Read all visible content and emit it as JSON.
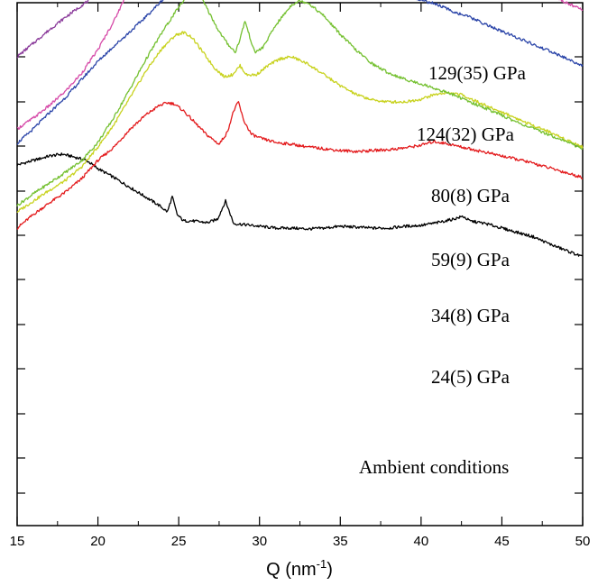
{
  "chart_data": {
    "type": "line",
    "title": "",
    "xlabel": "Q (nm⁻¹)",
    "xlabel_base": "Q (nm",
    "xlabel_exp": "-1",
    "xlabel_close": ")",
    "ylabel": "",
    "xlim": [
      15,
      50
    ],
    "xticks": [
      "15",
      "20",
      "25",
      "30",
      "35",
      "40",
      "45",
      "50"
    ],
    "yticks_labeled": false,
    "y_units": "arbitrary intensity (stacked, offset)",
    "series": [
      {
        "name": "Ambient conditions",
        "color": "#000000",
        "x": [
          15,
          16,
          17,
          17.8,
          18.5,
          19.3,
          20,
          21,
          22,
          23,
          23.8,
          24.3,
          24.6,
          24.9,
          25.3,
          25.8,
          26.3,
          26.8,
          27.4,
          27.7,
          27.9,
          28.1,
          28.4,
          29,
          30,
          31,
          32,
          33,
          34,
          35,
          36,
          37,
          38,
          39,
          40,
          41,
          42,
          42.6,
          43,
          44,
          45,
          46,
          47,
          48,
          49,
          50
        ],
        "y": [
          400,
          405,
          410,
          412,
          409,
          405,
          396,
          386,
          375,
          364,
          355,
          348,
          365,
          345,
          338,
          338,
          337,
          336,
          340,
          352,
          360,
          350,
          335,
          334,
          332,
          330,
          330,
          329,
          330,
          332,
          331,
          330,
          330,
          332,
          333,
          336,
          340,
          343,
          338,
          335,
          330,
          325,
          320,
          312,
          305,
          298
        ]
      },
      {
        "name": "24(5) GPa",
        "color": "#e31a1c",
        "x": [
          15,
          16,
          17,
          18,
          19,
          20,
          21,
          22,
          23,
          23.8,
          24.3,
          24.7,
          25.3,
          26,
          26.7,
          27.5,
          28,
          28.4,
          28.7,
          29,
          29.5,
          30,
          31,
          32,
          33,
          34,
          35,
          36,
          37,
          38,
          39,
          40,
          40.8,
          41.5,
          42.5,
          43.5,
          44.5,
          45.5,
          46.5,
          47.5,
          48.5,
          50
        ],
        "y": [
          330,
          345,
          358,
          370,
          385,
          405,
          420,
          440,
          456,
          466,
          469,
          468,
          460,
          447,
          434,
          423,
          436,
          460,
          470,
          450,
          434,
          430,
          425,
          423,
          420,
          418,
          416,
          415,
          416,
          417,
          419,
          422,
          426,
          424,
          420,
          416,
          412,
          408,
          404,
          399,
          394,
          386
        ]
      },
      {
        "name": "34(8) GPa",
        "color": "#c8d21e",
        "x": [
          15,
          16,
          17,
          18,
          19,
          20,
          21,
          22,
          23,
          24,
          24.8,
          25.3,
          25.8,
          26.5,
          27.2,
          27.8,
          28.3,
          28.8,
          29.2,
          29.8,
          30.5,
          31.3,
          32,
          33,
          34,
          35,
          36,
          37,
          38,
          39,
          40,
          40.8,
          41.5,
          42.5,
          43.5,
          44.5,
          45.5,
          46.5,
          47.5,
          48.5,
          50
        ],
        "y": [
          348,
          360,
          372,
          383,
          398,
          420,
          445,
          475,
          505,
          530,
          544,
          547,
          542,
          525,
          508,
          498,
          500,
          510,
          500,
          500,
          510,
          518,
          520,
          512,
          500,
          488,
          478,
          472,
          470,
          470,
          473,
          478,
          480,
          478,
          470,
          462,
          455,
          447,
          440,
          432,
          420
        ]
      },
      {
        "name": "59(9) GPa",
        "color": "#74c030",
        "x": [
          15,
          16,
          17,
          18,
          19,
          20,
          21,
          22,
          23,
          24,
          25,
          25.5,
          26,
          26.5,
          27,
          27.5,
          28,
          28.5,
          28.8,
          29.1,
          29.4,
          29.7,
          30.2,
          31,
          32,
          32.5,
          33,
          34,
          35,
          36,
          37,
          38,
          39,
          40,
          41,
          42,
          43,
          44,
          45,
          46,
          47,
          48,
          49,
          50
        ],
        "y": [
          355,
          368,
          380,
          392,
          405,
          425,
          453,
          485,
          518,
          548,
          575,
          587,
          590,
          582,
          565,
          548,
          535,
          525,
          540,
          560,
          542,
          525,
          530,
          555,
          578,
          582,
          580,
          565,
          545,
          527,
          512,
          502,
          495,
          490,
          484,
          478,
          470,
          463,
          455,
          447,
          440,
          433,
          426,
          418
        ]
      },
      {
        "name": "80(8) GPa",
        "color": "#2a44a8",
        "x": [
          15,
          16,
          17,
          18,
          19,
          20,
          21,
          22,
          23,
          24,
          25,
          26,
          26.5,
          27,
          27.5,
          28,
          28.5,
          29,
          29.5,
          30,
          31,
          32,
          33,
          34,
          35,
          36,
          37,
          38,
          39,
          40,
          41,
          42,
          43,
          44,
          45,
          46,
          47,
          48,
          49,
          50
        ],
        "y": [
          424,
          440,
          458,
          475,
          495,
          515,
          532,
          548,
          565,
          583,
          600,
          610,
          616,
          618,
          614,
          608,
          600,
          594,
          591,
          590,
          596,
          604,
          610,
          615,
          616,
          612,
          605,
          597,
          590,
          583,
          578,
          570,
          564,
          556,
          548,
          541,
          533,
          526,
          518,
          510
        ]
      },
      {
        "name": "124(32) GPa",
        "color": "#d64aa8",
        "x": [
          15,
          16,
          17,
          18,
          19,
          20,
          21,
          22,
          23,
          24,
          25,
          25.8,
          26.5,
          27,
          27.5,
          28,
          28.5,
          29,
          29.5,
          30,
          30.5,
          31,
          32,
          33,
          34,
          35,
          35.5,
          36,
          37,
          38,
          39,
          40,
          41,
          42,
          43,
          44,
          45,
          46,
          47,
          48,
          49,
          50
        ],
        "y": [
          440,
          452,
          466,
          482,
          502,
          528,
          560,
          598,
          640,
          680,
          712,
          728,
          734,
          733,
          725,
          710,
          693,
          680,
          675,
          675,
          680,
          690,
          712,
          730,
          743,
          746,
          745,
          741,
          726,
          708,
          690,
          675,
          660,
          647,
          636,
          626,
          616,
          607,
          598,
          589,
          580,
          572
        ]
      },
      {
        "name": "129(35) GPa",
        "color": "#8a3a9a",
        "x": [
          15,
          16,
          17,
          18,
          19,
          20,
          21,
          22,
          23,
          24,
          25,
          26,
          26.5,
          27,
          27.5,
          28,
          28.5,
          29,
          29.5,
          30,
          30.5,
          31,
          32,
          33,
          34,
          34.5,
          35,
          36,
          37,
          38,
          39,
          40,
          41,
          42,
          43,
          44,
          45,
          46,
          47,
          48,
          49,
          50
        ],
        "y": [
          520,
          535,
          550,
          564,
          577,
          590,
          606,
          625,
          648,
          670,
          694,
          712,
          718,
          720,
          717,
          710,
          702,
          696,
          693,
          693,
          696,
          703,
          720,
          738,
          750,
          752,
          750,
          742,
          730,
          716,
          702,
          688,
          676,
          665,
          656,
          647,
          638,
          630,
          622,
          614,
          606,
          598
        ]
      }
    ],
    "label_order": [
      "129(35) GPa",
      "124(32) GPa",
      "80(8) GPa",
      "59(9) GPa",
      "34(8) GPa",
      "24(5) GPa",
      "Ambient conditions"
    ]
  }
}
